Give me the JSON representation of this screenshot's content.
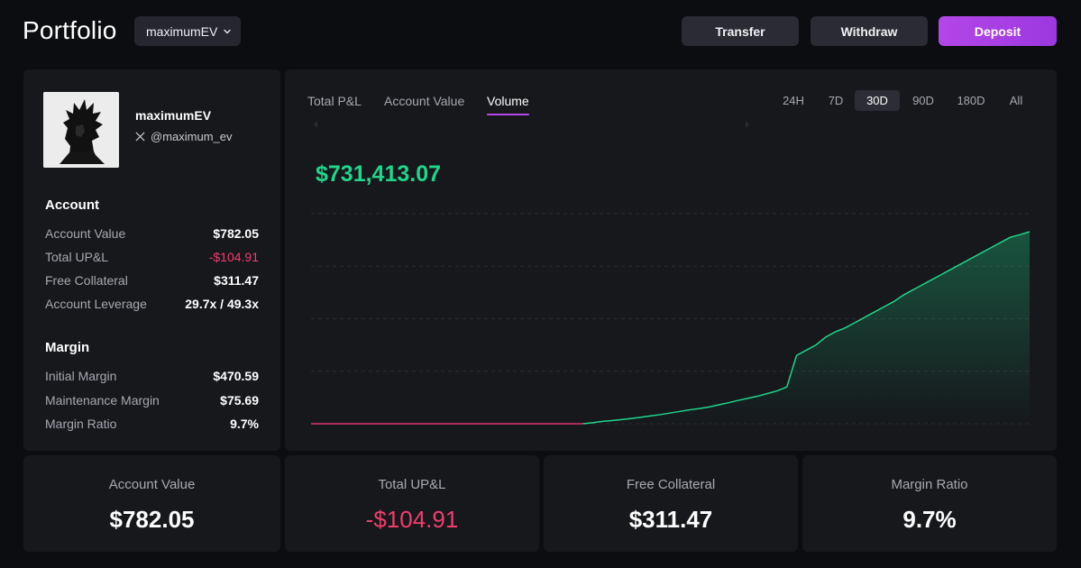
{
  "header": {
    "title": "Portfolio",
    "account_select": "maximumEV",
    "transfer_label": "Transfer",
    "withdraw_label": "Withdraw",
    "deposit_label": "Deposit"
  },
  "profile": {
    "name": "maximumEV",
    "handle": "@maximum_ev",
    "handle_icon": "x-logo-icon"
  },
  "account": {
    "title": "Account",
    "rows": [
      {
        "label": "Account Value",
        "value": "$782.05"
      },
      {
        "label": "Total UP&L",
        "value": "-$104.91"
      },
      {
        "label": "Free Collateral",
        "value": "$311.47"
      },
      {
        "label": "Account Leverage",
        "value": "29.7x / 49.3x"
      }
    ]
  },
  "margin": {
    "title": "Margin",
    "rows": [
      {
        "label": "Initial Margin",
        "value": "$470.59"
      },
      {
        "label": "Maintenance Margin",
        "value": "$75.69"
      },
      {
        "label": "Margin Ratio",
        "value": "9.7%"
      }
    ]
  },
  "chart_panel": {
    "tabs": [
      "Total P&L",
      "Account Value",
      "Volume"
    ],
    "active_tab": "Volume",
    "ranges": [
      "24H",
      "7D",
      "30D",
      "90D",
      "180D",
      "All"
    ],
    "active_range": "30D",
    "headline_value": "$731,413.07"
  },
  "chart_data": {
    "type": "area",
    "title": "",
    "xlabel": "",
    "ylabel": "",
    "grid": true,
    "ylim": [
      0,
      800000
    ],
    "line_color_positive": "#1fd68a",
    "line_color_zero": "#d8346a",
    "values": [
      0,
      0,
      0,
      0,
      0,
      0,
      0,
      0,
      0,
      0,
      0,
      0,
      0,
      0,
      0,
      0,
      0,
      0,
      0,
      0,
      0,
      0,
      0,
      0,
      0,
      0,
      0,
      0,
      0,
      4000,
      9000,
      12000,
      16000,
      20000,
      25000,
      30000,
      35000,
      41000,
      47000,
      53000,
      58000,
      64000,
      72000,
      80000,
      89000,
      97000,
      105000,
      115000,
      125000,
      140000,
      260000,
      280000,
      300000,
      330000,
      350000,
      365000,
      385000,
      405000,
      425000,
      445000,
      465000,
      490000,
      510000,
      530000,
      550000,
      570000,
      590000,
      610000,
      630000,
      650000,
      670000,
      690000,
      710000,
      720000,
      731413
    ]
  },
  "stats": [
    {
      "label": "Account Value",
      "value": "$782.05"
    },
    {
      "label": "Total UP&L",
      "value": "-$104.91"
    },
    {
      "label": "Free Collateral",
      "value": "$311.47"
    },
    {
      "label": "Margin Ratio",
      "value": "9.7%"
    }
  ],
  "colors": {
    "accent": "#b347e8",
    "positive": "#1fd68a",
    "negative": "#f23d6d",
    "panel": "#16181c",
    "background": "#0b0d10"
  }
}
